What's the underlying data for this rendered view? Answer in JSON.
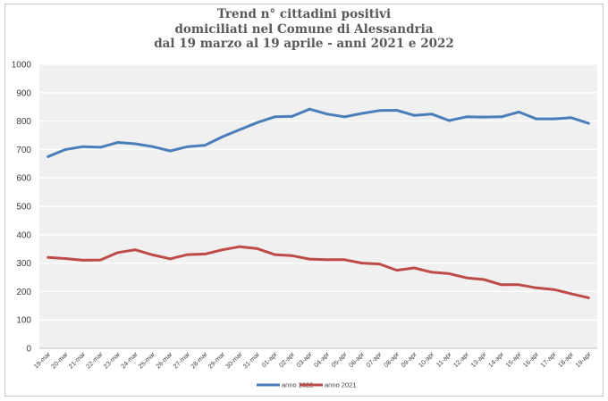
{
  "chart_data": {
    "type": "line",
    "title_lines": [
      "Trend n° cittadini positivi",
      "domiciliati nel Comune di Alessandria",
      "dal 19 marzo al 19 aprile - anni 2021 e 2022"
    ],
    "xlabel": "",
    "ylabel": "",
    "ylim": [
      0,
      1000
    ],
    "yticks": [
      0,
      100,
      200,
      300,
      400,
      500,
      600,
      700,
      800,
      900,
      1000
    ],
    "grid": "horizontal",
    "legend": "bottom",
    "categories": [
      "19-mar",
      "20-mar",
      "21-mar",
      "22-mar",
      "23-mar",
      "24-mar",
      "25-mar",
      "26-mar",
      "27-mar",
      "28-mar",
      "29-mar",
      "30-mar",
      "31-mar",
      "01-apr",
      "02-apr",
      "03-apr",
      "04-apr",
      "05-apr",
      "06-apr",
      "07-apr",
      "08-apr",
      "09-apr",
      "10-apr",
      "11-apr",
      "12-apr",
      "13-apr",
      "14-apr",
      "15-apr",
      "16-apr",
      "17-apr",
      "18-apr",
      "19-apr"
    ],
    "series": [
      {
        "name": "anno 2022",
        "color": "#4a7ebb",
        "values": [
          675,
          700,
          710,
          708,
          725,
          720,
          710,
          695,
          710,
          715,
          745,
          770,
          795,
          815,
          817,
          842,
          825,
          815,
          827,
          837,
          838,
          820,
          825,
          802,
          815,
          814,
          815,
          832,
          808,
          808,
          812,
          792
        ]
      },
      {
        "name": "anno 2021",
        "color": "#be4b48",
        "values": [
          320,
          316,
          310,
          311,
          337,
          347,
          329,
          315,
          330,
          332,
          347,
          358,
          351,
          330,
          326,
          314,
          312,
          312,
          300,
          297,
          275,
          283,
          268,
          263,
          248,
          242,
          224,
          224,
          213,
          207,
          192,
          178
        ]
      }
    ]
  }
}
